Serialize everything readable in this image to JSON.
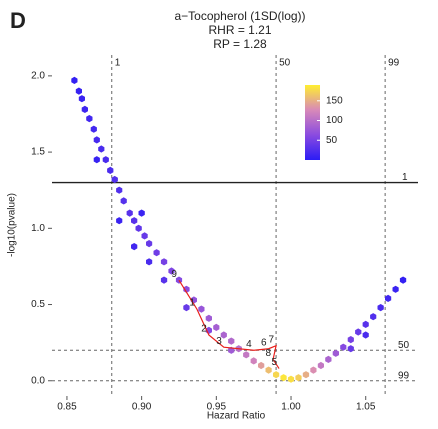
{
  "chart_data": {
    "type": "scatter",
    "panel": "D",
    "title": "a−Tocopherol (1SD(log))",
    "subtitle": [
      "RHR = 1.21",
      "RP = 1.28"
    ],
    "x_label": "Hazard Ratio",
    "y_label": "-log10(pvalue)",
    "xlim": [
      0.84,
      1.085
    ],
    "ylim": [
      -0.1,
      2.15
    ],
    "xticks": [
      {
        "value": 0.85,
        "label": "0.85"
      },
      {
        "value": 0.9,
        "label": "0.90"
      },
      {
        "value": 0.95,
        "label": "0.95"
      },
      {
        "value": 1.0,
        "label": "1.00"
      },
      {
        "value": 1.05,
        "label": "1.05"
      }
    ],
    "yticks": [
      {
        "value": 0,
        "label": "0.0"
      },
      {
        "value": 0.5,
        "label": "0.5"
      },
      {
        "value": 1.0,
        "label": "1.0"
      },
      {
        "value": 1.5,
        "label": "1.5"
      },
      {
        "value": 2.0,
        "label": "2.0"
      }
    ],
    "vlines": [
      {
        "value": 0.88,
        "label": "1"
      },
      {
        "value": 0.99,
        "label": "50"
      },
      {
        "value": 1.063,
        "label": "99"
      }
    ],
    "hlines": [
      {
        "value": 1.3,
        "label": "1",
        "style": "solid"
      },
      {
        "value": 0.2,
        "label": "50",
        "style": "dashed"
      },
      {
        "value": 0.0,
        "label": "99",
        "style": "dashed"
      }
    ],
    "colorscale": [
      "#2b1cf5",
      "#8a4be0",
      "#d889b8",
      "#ffee30"
    ],
    "clim": [
      0,
      190
    ],
    "cticks": [
      50,
      100,
      150
    ],
    "series": [
      {
        "x": [
          0.855,
          0.858,
          0.86,
          0.862,
          0.865,
          0.868,
          0.87,
          0.873,
          0.876,
          0.879,
          0.882,
          0.885,
          0.888,
          0.892,
          0.895,
          0.898,
          0.902,
          0.905,
          0.91,
          0.915,
          0.92,
          0.925,
          0.93,
          0.935,
          0.94,
          0.945,
          0.95,
          0.955,
          0.96,
          0.965,
          0.97,
          0.975,
          0.98,
          0.985,
          0.99,
          0.995,
          1.0,
          0.885,
          0.895,
          0.905,
          0.915,
          0.93,
          0.945,
          0.96,
          0.9,
          0.87,
          1.005,
          1.01,
          1.015,
          1.02,
          1.025,
          1.03,
          1.035,
          1.04,
          1.045,
          1.05,
          1.055,
          1.06,
          1.065,
          1.07,
          1.075,
          1.05,
          1.04
        ],
        "values": [
          1.97,
          1.9,
          1.85,
          1.78,
          1.72,
          1.65,
          1.58,
          1.52,
          1.45,
          1.38,
          1.32,
          1.25,
          1.18,
          1.1,
          1.05,
          1.0,
          0.95,
          0.9,
          0.84,
          0.78,
          0.72,
          0.66,
          0.6,
          0.53,
          0.47,
          0.41,
          0.35,
          0.3,
          0.26,
          0.21,
          0.17,
          0.13,
          0.1,
          0.07,
          0.04,
          0.02,
          0.01,
          1.05,
          0.88,
          0.78,
          0.66,
          0.48,
          0.33,
          0.2,
          1.1,
          1.45,
          0.02,
          0.04,
          0.07,
          0.1,
          0.14,
          0.18,
          0.22,
          0.27,
          0.32,
          0.37,
          0.42,
          0.48,
          0.54,
          0.6,
          0.66,
          0.3,
          0.21
        ],
        "counts": [
          5,
          8,
          10,
          12,
          15,
          15,
          18,
          20,
          20,
          22,
          25,
          25,
          28,
          30,
          30,
          35,
          40,
          40,
          45,
          50,
          55,
          60,
          65,
          70,
          75,
          80,
          85,
          90,
          95,
          100,
          110,
          120,
          140,
          160,
          175,
          185,
          180,
          10,
          15,
          20,
          30,
          40,
          60,
          80,
          10,
          8,
          170,
          150,
          130,
          110,
          90,
          80,
          60,
          50,
          40,
          30,
          25,
          20,
          15,
          10,
          5,
          20,
          40
        ]
      }
    ],
    "highlights": {
      "color": "#e8201c",
      "labels": [
        "9",
        "1",
        "2",
        "3",
        "4",
        "6",
        "7",
        "8",
        "5"
      ],
      "x": [
        0.925,
        0.937,
        0.945,
        0.955,
        0.975,
        0.985,
        0.99,
        0.988,
        0.992
      ],
      "y": [
        0.66,
        0.47,
        0.3,
        0.22,
        0.2,
        0.21,
        0.23,
        0.14,
        0.08
      ]
    }
  }
}
